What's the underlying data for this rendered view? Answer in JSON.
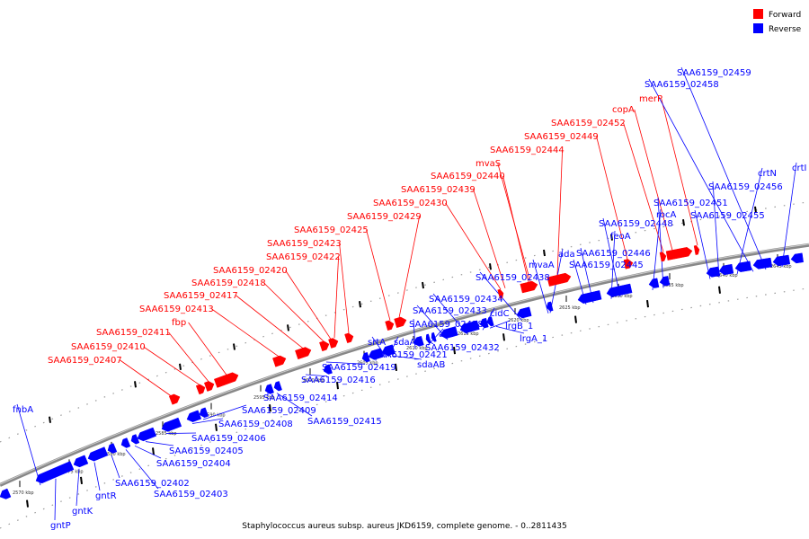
{
  "caption": "Staphylococcus aureus subsp. aureus JKD6159, complete genome. - 0..2811435",
  "legend": [
    {
      "label": "Forward",
      "color": "#ff0000"
    },
    {
      "label": "Reverse",
      "color": "#0000ff"
    }
  ],
  "colors": {
    "forward": "#ff0000",
    "reverse": "#0000ff",
    "backbone": "#888888",
    "line": "#000000"
  },
  "ticks": [
    "2570 kbp",
    "2575 kbp",
    "2580 kbp",
    "2585 kbp",
    "2590 kbp",
    "2595 kbp",
    "2600 kbp",
    "2605 kbp",
    "2610 kbp",
    "2615 kbp",
    "2620 kbp",
    "2625 kbp",
    "2630 kbp",
    "2635 kbp",
    "2640 kbp",
    "2645 kbp"
  ],
  "forward_labels": [
    "SAA6159_02407",
    "SAA6159_02410",
    "SAA6159_02411",
    "fbp",
    "SAA6159_02413",
    "SAA6159_02417",
    "SAA6159_02418",
    "SAA6159_02420",
    "SAA6159_02422",
    "SAA6159_02423",
    "SAA6159_02425",
    "SAA6159_02429",
    "SAA6159_02430",
    "SAA6159_02439",
    "SAA6159_02440",
    "mvaS",
    "SAA6159_02444",
    "SAA6159_02449",
    "SAA6159_02452",
    "copA",
    "merP"
  ],
  "reverse_labels": [
    "fnbA",
    "gntP",
    "gntK",
    "gntR",
    "SAA6159_02402",
    "SAA6159_02403",
    "SAA6159_02404",
    "SAA6159_02405",
    "SAA6159_02406",
    "SAA6159_02408",
    "SAA6159_02409",
    "SAA6159_02414",
    "SAA6159_02415",
    "SAA6159_02416",
    "SAA6159_02419",
    "SAA6159_02421",
    "srtA",
    "sdaAA",
    "sdaAB",
    "SAA6159_02428",
    "aes",
    "SAA6159_02432",
    "SAA6159_02433",
    "SAA6159_02434",
    "cidC",
    "lrgB_1",
    "lrgA_1",
    "SAA6159_02438",
    "mvaA",
    "ada",
    "SAA6159_02445",
    "SAA6159_02446",
    "feoA",
    "SAA6159_02448",
    "rocA",
    "SAA6159_02451",
    "SAA6159_02455",
    "crtN",
    "SAA6159_02456",
    "crtI",
    "SAA6159_02458",
    "SAA6159_02459"
  ]
}
